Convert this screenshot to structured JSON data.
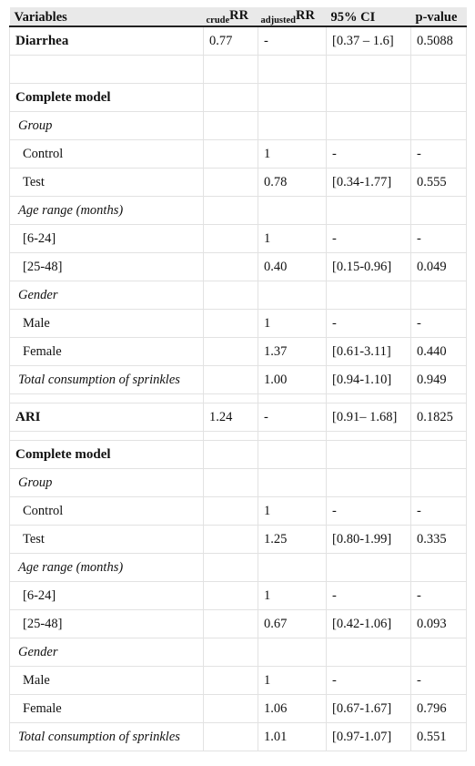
{
  "header": {
    "variables": "Variables",
    "crude_sub": "crude",
    "rr1": "RR",
    "adjusted_sub": "adjusted",
    "rr2": "RR",
    "ci": "95% CI",
    "pvalue": "p-value"
  },
  "diarrhea": {
    "label": "Diarrhea",
    "crude_rr": "0.77",
    "adjusted_rr": "-",
    "ci": "[0.37 – 1.6]",
    "p": "0.5088",
    "complete_model": "Complete model",
    "group_label": "Group",
    "control": {
      "label": "Control",
      "adj": "1",
      "ci": "-",
      "p": "-"
    },
    "test": {
      "label": "Test",
      "adj": "0.78",
      "ci": "[0.34-1.77]",
      "p": "0.555"
    },
    "age_label": "Age range (months)",
    "age1": {
      "label": "[6-24]",
      "adj": "1",
      "ci": "-",
      "p": "-"
    },
    "age2": {
      "label": "[25-48]",
      "adj": "0.40",
      "ci": "[0.15-0.96]",
      "p": "0.049"
    },
    "gender_label": "Gender",
    "male": {
      "label": "Male",
      "adj": "1",
      "ci": "-",
      "p": "-"
    },
    "female": {
      "label": "Female",
      "adj": "1.37",
      "ci": "[0.61-3.11]",
      "p": "0.440"
    },
    "sprinkles": {
      "label": "Total consumption of sprinkles",
      "adj": "1.00",
      "ci": "[0.94-1.10]",
      "p": "0.949"
    }
  },
  "ari": {
    "label": "ARI",
    "crude_rr": "1.24",
    "adjusted_rr": "-",
    "ci": "[0.91– 1.68]",
    "p": "0.1825",
    "complete_model": "Complete model",
    "group_label": "Group",
    "control": {
      "label": "Control",
      "adj": "1",
      "ci": "-",
      "p": "-"
    },
    "test": {
      "label": "Test",
      "adj": "1.25",
      "ci": "[0.80-1.99]",
      "p": "0.335"
    },
    "age_label": "Age range (months)",
    "age1": {
      "label": "[6-24]",
      "adj": "1",
      "ci": "-",
      "p": "-"
    },
    "age2": {
      "label": "[25-48]",
      "adj": "0.67",
      "ci": "[0.42-1.06]",
      "p": "0.093"
    },
    "gender_label": "Gender",
    "male": {
      "label": "Male",
      "adj": "1",
      "ci": "-",
      "p": "-"
    },
    "female": {
      "label": "Female",
      "adj": "1.06",
      "ci": "[0.67-1.67]",
      "p": "0.796"
    },
    "sprinkles": {
      "label": "Total consumption of sprinkles",
      "adj": "1.01",
      "ci": "[0.97-1.07]",
      "p": "0.551"
    }
  }
}
